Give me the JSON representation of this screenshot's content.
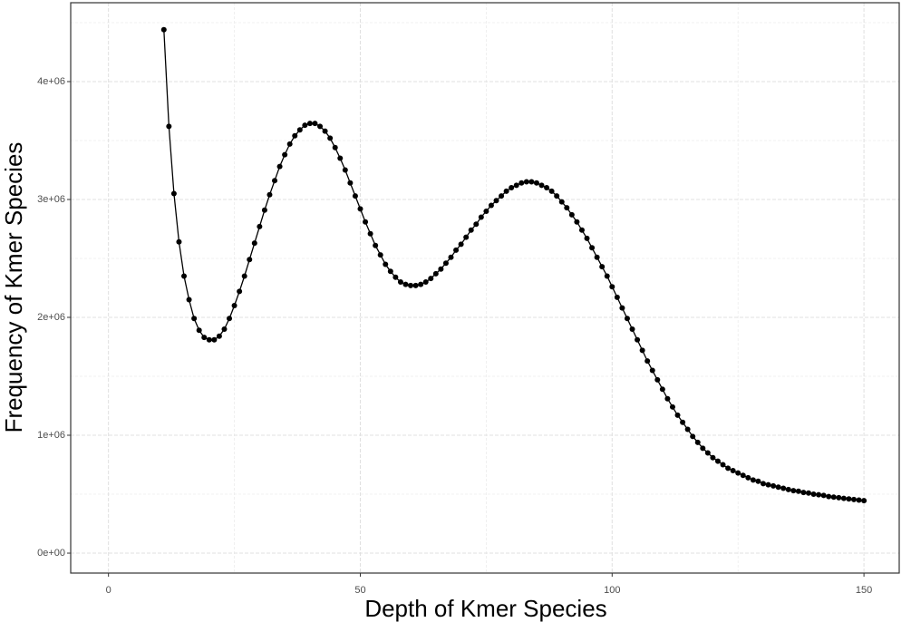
{
  "chart_data": {
    "type": "line",
    "x_label": "Depth of Kmer Species",
    "y_label": "Frequency of Kmer Species",
    "color": "#000000",
    "grid": true,
    "xlim": [
      -7.5,
      157
    ],
    "ylim": [
      -169000,
      4669000
    ],
    "xticks": [
      0,
      50,
      100,
      150
    ],
    "xminor": [
      25,
      75,
      125
    ],
    "yticks": [
      {
        "value": 0,
        "label": "0e+00"
      },
      {
        "value": 1000000,
        "label": "1e+06"
      },
      {
        "value": 2000000,
        "label": "2e+06"
      },
      {
        "value": 3000000,
        "label": "3e+06"
      },
      {
        "value": 4000000,
        "label": "4e+06"
      }
    ],
    "yminor": [
      500000,
      1500000,
      2500000,
      3500000,
      4500000
    ],
    "x": [
      11,
      12,
      13,
      14,
      15,
      16,
      17,
      18,
      19,
      20,
      21,
      22,
      23,
      24,
      25,
      26,
      27,
      28,
      29,
      30,
      31,
      32,
      33,
      34,
      35,
      36,
      37,
      38,
      39,
      40,
      41,
      42,
      43,
      44,
      45,
      46,
      47,
      48,
      49,
      50,
      51,
      52,
      53,
      54,
      55,
      56,
      57,
      58,
      59,
      60,
      61,
      62,
      63,
      64,
      65,
      66,
      67,
      68,
      69,
      70,
      71,
      72,
      73,
      74,
      75,
      76,
      77,
      78,
      79,
      80,
      81,
      82,
      83,
      84,
      85,
      86,
      87,
      88,
      89,
      90,
      91,
      92,
      93,
      94,
      95,
      96,
      97,
      98,
      99,
      100,
      101,
      102,
      103,
      104,
      105,
      106,
      107,
      108,
      109,
      110,
      111,
      112,
      113,
      114,
      115,
      116,
      117,
      118,
      119,
      120,
      121,
      122,
      123,
      124,
      125,
      126,
      127,
      128,
      129,
      130,
      131,
      132,
      133,
      134,
      135,
      136,
      137,
      138,
      139,
      140,
      141,
      142,
      143,
      144,
      145,
      146,
      147,
      148,
      149,
      150
    ],
    "values": [
      4440000,
      3620000,
      3050000,
      2640000,
      2350000,
      2150000,
      1990000,
      1890000,
      1830000,
      1810000,
      1810000,
      1840000,
      1900000,
      1990000,
      2100000,
      2220000,
      2350000,
      2490000,
      2630000,
      2770000,
      2910000,
      3040000,
      3160000,
      3280000,
      3380000,
      3470000,
      3540000,
      3590000,
      3630000,
      3645000,
      3645000,
      3620000,
      3580000,
      3520000,
      3440000,
      3350000,
      3250000,
      3140000,
      3030000,
      2920000,
      2810000,
      2710000,
      2610000,
      2530000,
      2450000,
      2390000,
      2340000,
      2300000,
      2280000,
      2270000,
      2270000,
      2280000,
      2300000,
      2330000,
      2370000,
      2410000,
      2460000,
      2510000,
      2570000,
      2620000,
      2680000,
      2740000,
      2790000,
      2850000,
      2900000,
      2950000,
      2990000,
      3030000,
      3070000,
      3100000,
      3120000,
      3140000,
      3150000,
      3150000,
      3140000,
      3120000,
      3100000,
      3070000,
      3030000,
      2980000,
      2930000,
      2870000,
      2810000,
      2740000,
      2670000,
      2590000,
      2510000,
      2430000,
      2350000,
      2260000,
      2170000,
      2080000,
      1990000,
      1900000,
      1810000,
      1720000,
      1630000,
      1550000,
      1470000,
      1390000,
      1310000,
      1240000,
      1170000,
      1110000,
      1050000,
      990000,
      940000,
      890000,
      850000,
      810000,
      780000,
      750000,
      720000,
      700000,
      680000,
      660000,
      640000,
      620000,
      610000,
      590000,
      580000,
      570000,
      560000,
      550000,
      540000,
      530000,
      525000,
      515000,
      510000,
      500000,
      495000,
      490000,
      480000,
      475000,
      470000,
      465000,
      460000,
      455000,
      450000,
      445000
    ]
  }
}
